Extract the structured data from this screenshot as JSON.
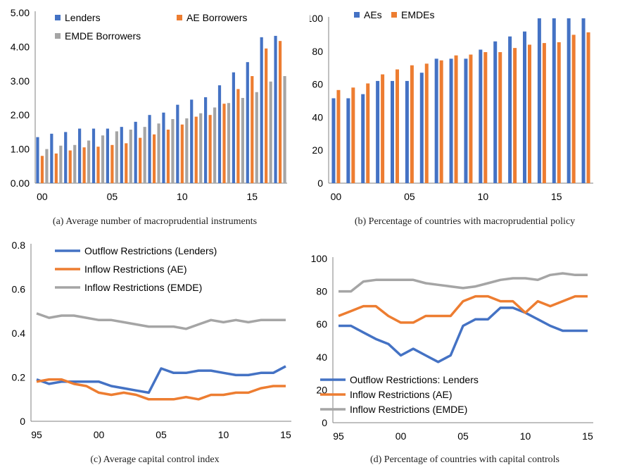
{
  "colors": {
    "blue": "#4472C4",
    "orange": "#ED7D31",
    "gray": "#A5A5A5",
    "axis": "#808080"
  },
  "captions": {
    "a": "(a) Average number of macroprudential instruments",
    "b": "(b) Percentage of countries with macroprudential policy",
    "c": "(c) Average capital control index",
    "d": "(d) Percentage of countries with capital controls"
  },
  "chart_data": [
    {
      "id": "a",
      "type": "bar",
      "categories": [
        "00",
        "01",
        "02",
        "03",
        "04",
        "05",
        "06",
        "07",
        "08",
        "09",
        "10",
        "11",
        "12",
        "13",
        "14",
        "15",
        "16",
        "17"
      ],
      "xtick_labels": [
        {
          "index": 0,
          "label": "00"
        },
        {
          "index": 5,
          "label": "05"
        },
        {
          "index": 10,
          "label": "10"
        },
        {
          "index": 15,
          "label": "15"
        }
      ],
      "series": [
        {
          "name": "Lenders",
          "color": "blue",
          "values": [
            1.35,
            1.45,
            1.5,
            1.6,
            1.6,
            1.6,
            1.65,
            1.8,
            2.0,
            2.07,
            2.3,
            2.45,
            2.52,
            2.87,
            3.25,
            3.55,
            4.28,
            4.32
          ]
        },
        {
          "name": "AE Borrowers",
          "color": "orange",
          "values": [
            0.8,
            0.87,
            0.96,
            1.05,
            1.07,
            1.12,
            1.17,
            1.33,
            1.43,
            1.57,
            1.72,
            1.95,
            2.0,
            2.33,
            2.76,
            3.14,
            3.95,
            4.17
          ]
        },
        {
          "name": "EMDE Borrowers",
          "color": "gray",
          "values": [
            1.0,
            1.1,
            1.12,
            1.25,
            1.4,
            1.52,
            1.57,
            1.65,
            1.75,
            1.88,
            1.9,
            2.05,
            2.22,
            2.35,
            2.5,
            2.67,
            2.98,
            3.14
          ]
        }
      ],
      "ylim": [
        0,
        5
      ],
      "yticks": [
        "0.00",
        "1.00",
        "2.00",
        "3.00",
        "4.00",
        "5.00"
      ],
      "legend": "top-left"
    },
    {
      "id": "b",
      "type": "bar",
      "categories": [
        "00",
        "01",
        "02",
        "03",
        "04",
        "05",
        "06",
        "07",
        "08",
        "09",
        "10",
        "11",
        "12",
        "13",
        "14",
        "15",
        "16",
        "17"
      ],
      "xtick_labels": [
        {
          "index": 0,
          "label": "00"
        },
        {
          "index": 5,
          "label": "05"
        },
        {
          "index": 10,
          "label": "10"
        },
        {
          "index": 15,
          "label": "15"
        }
      ],
      "series": [
        {
          "name": "AEs",
          "color": "blue",
          "values": [
            51.5,
            51.5,
            54,
            62,
            62,
            62,
            67,
            75.5,
            75.5,
            75.5,
            81,
            86,
            89,
            92,
            100,
            100,
            100,
            100
          ]
        },
        {
          "name": "EMDEs",
          "color": "orange",
          "values": [
            56.5,
            58,
            60.5,
            66,
            69,
            71.5,
            72.5,
            74.5,
            77.5,
            78,
            79.5,
            79.5,
            82,
            84,
            85,
            85.5,
            90,
            91.5
          ]
        }
      ],
      "ylim": [
        0,
        100
      ],
      "yticks": [
        "0",
        "20",
        "40",
        "60",
        "80",
        "100"
      ],
      "legend": "top-left"
    },
    {
      "id": "c",
      "type": "line",
      "x": [
        1995,
        1996,
        1997,
        1998,
        1999,
        2000,
        2001,
        2002,
        2003,
        2004,
        2005,
        2006,
        2007,
        2008,
        2009,
        2010,
        2011,
        2012,
        2013,
        2014,
        2015
      ],
      "xtick_labels": [
        {
          "value": 1995,
          "label": "95"
        },
        {
          "value": 2000,
          "label": "00"
        },
        {
          "value": 2005,
          "label": "05"
        },
        {
          "value": 2010,
          "label": "10"
        },
        {
          "value": 2015,
          "label": "15"
        }
      ],
      "series": [
        {
          "name": "Outflow Restrictions (Lenders)",
          "color": "blue",
          "values": [
            0.19,
            0.17,
            0.18,
            0.18,
            0.18,
            0.18,
            0.16,
            0.15,
            0.14,
            0.13,
            0.24,
            0.22,
            0.22,
            0.23,
            0.23,
            0.22,
            0.21,
            0.21,
            0.22,
            0.22,
            0.25
          ]
        },
        {
          "name": "Inflow Restrictions (AE)",
          "color": "orange",
          "values": [
            0.18,
            0.19,
            0.19,
            0.17,
            0.16,
            0.13,
            0.12,
            0.13,
            0.12,
            0.1,
            0.1,
            0.1,
            0.11,
            0.1,
            0.12,
            0.12,
            0.13,
            0.13,
            0.15,
            0.16,
            0.16
          ]
        },
        {
          "name": "Inflow Restrictions (EMDE)",
          "color": "gray",
          "values": [
            0.49,
            0.47,
            0.48,
            0.48,
            0.47,
            0.46,
            0.46,
            0.45,
            0.44,
            0.43,
            0.43,
            0.43,
            0.42,
            0.44,
            0.46,
            0.45,
            0.46,
            0.45,
            0.46,
            0.46,
            0.46
          ]
        }
      ],
      "ylim": [
        0,
        0.8
      ],
      "yticks": [
        "0",
        "0.2",
        "0.4",
        "0.6",
        "0.8"
      ],
      "legend": "top-center"
    },
    {
      "id": "d",
      "type": "line",
      "x": [
        1995,
        1996,
        1997,
        1998,
        1999,
        2000,
        2001,
        2002,
        2003,
        2004,
        2005,
        2006,
        2007,
        2008,
        2009,
        2010,
        2011,
        2012,
        2013,
        2014,
        2015
      ],
      "xtick_labels": [
        {
          "value": 1995,
          "label": "95"
        },
        {
          "value": 2000,
          "label": "00"
        },
        {
          "value": 2005,
          "label": "05"
        },
        {
          "value": 2010,
          "label": "10"
        },
        {
          "value": 2015,
          "label": "15"
        }
      ],
      "series": [
        {
          "name": "Outflow Restrictions: Lenders",
          "color": "blue",
          "values": [
            59,
            59,
            55,
            51,
            48,
            41,
            45,
            41,
            37,
            41,
            59,
            63,
            63,
            70,
            70,
            67,
            63,
            59,
            56,
            56,
            56
          ]
        },
        {
          "name": "Inflow Restrictions (AE)",
          "color": "orange",
          "values": [
            65,
            68,
            71,
            71,
            65,
            61,
            61,
            65,
            65,
            65,
            74,
            77,
            77,
            74,
            74,
            67,
            74,
            71,
            74,
            77,
            77
          ]
        },
        {
          "name": "Inflow Restrictions (EMDE)",
          "color": "gray",
          "values": [
            80,
            80,
            86,
            87,
            87,
            87,
            87,
            85,
            84,
            83,
            82,
            83,
            85,
            87,
            88,
            88,
            87,
            90,
            91,
            90,
            90
          ]
        }
      ],
      "ylim": [
        0,
        100
      ],
      "yticks": [
        "0",
        "20",
        "40",
        "60",
        "80",
        "100"
      ],
      "legend": "bottom-left"
    }
  ]
}
